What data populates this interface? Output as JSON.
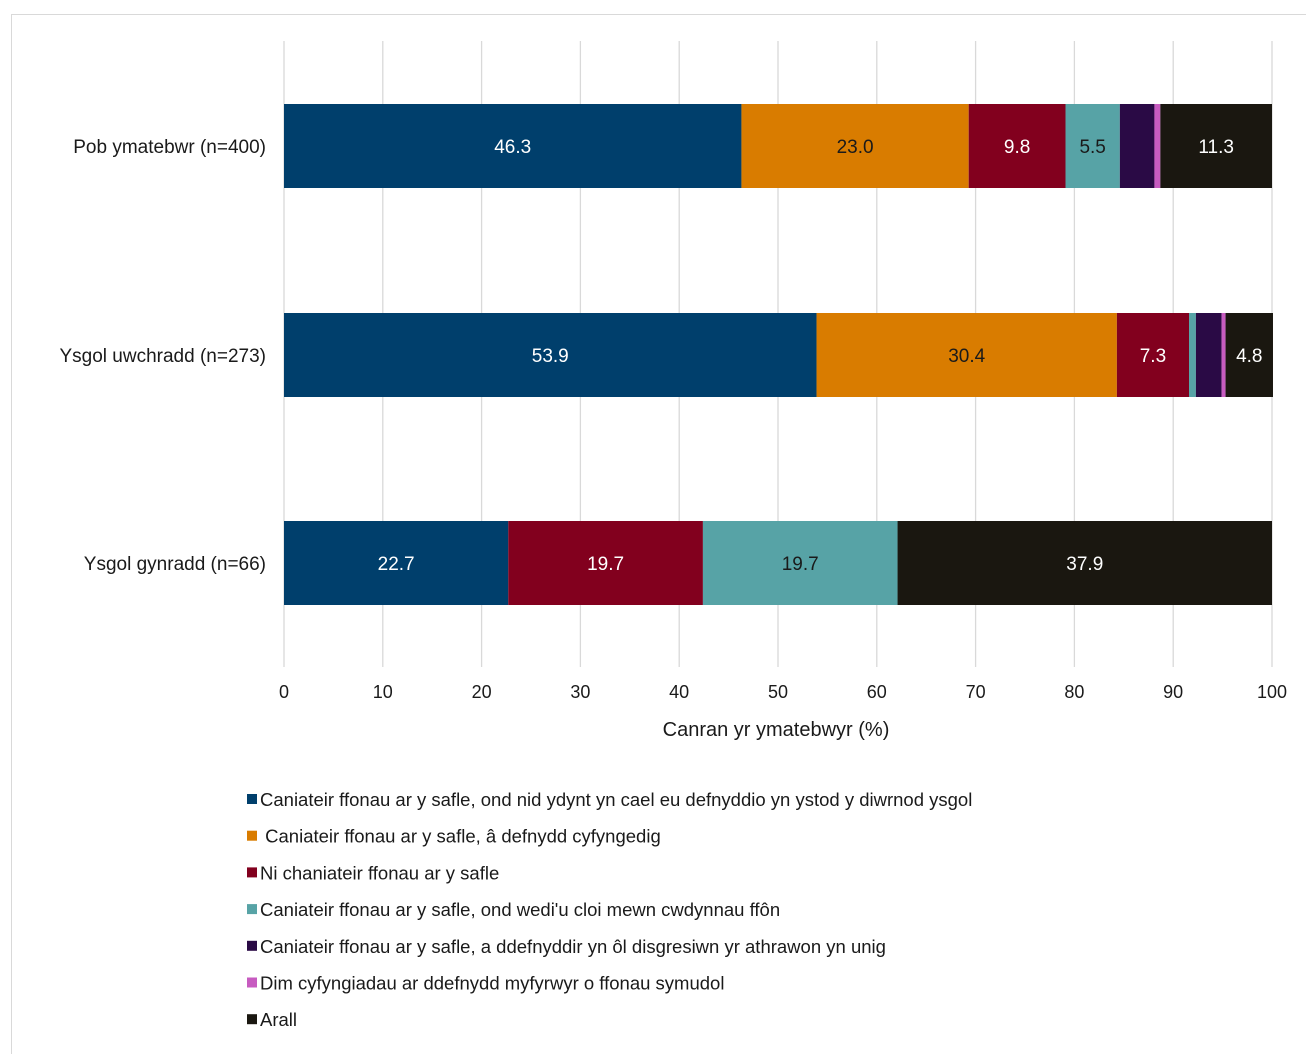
{
  "chart_data": {
    "type": "bar",
    "orientation": "horizontal",
    "stacked": true,
    "categories": [
      "Pob ymatebwr (n=400)",
      "Ysgol uwchradd (n=273)",
      "Ysgol gynradd (n=66)"
    ],
    "series": [
      {
        "name": "Caniateir ffonau ar y safle, ond nid ydynt yn cael eu defnyddio yn ystod y diwrnod ysgol",
        "color": "#003f6c",
        "values": [
          46.3,
          53.9,
          22.7
        ],
        "labels": [
          "46.3",
          "53.9",
          "22.7"
        ],
        "label_color": "#ffffff"
      },
      {
        "name": " Caniateir ffonau ar y safle, â defnydd cyfyngedig",
        "color": "#d97c00",
        "values": [
          23.0,
          30.4,
          0
        ],
        "labels": [
          "23.0",
          "30.4",
          ""
        ],
        "label_color": "#1a1a1a"
      },
      {
        "name": "Ni chaniateir ffonau ar y safle",
        "color": "#82001e",
        "values": [
          9.8,
          7.3,
          19.7
        ],
        "labels": [
          "9.8",
          "7.3",
          "19.7"
        ],
        "label_color": "#ffffff"
      },
      {
        "name": "Caniateir ffonau ar y safle, ond wedi'u cloi mewn cwdynnau ffôn",
        "color": "#57a3a6",
        "values": [
          5.5,
          0.7,
          19.7
        ],
        "labels": [
          "5.5",
          "",
          "19.7"
        ],
        "label_color": "#1a1a1a"
      },
      {
        "name": "Caniateir ffonau ar y safle, a ddefnyddir yn ôl disgresiwn yr athrawon yn unig",
        "color": "#2a0a45",
        "values": [
          3.5,
          2.6,
          0
        ],
        "labels": [
          "",
          "",
          ""
        ],
        "label_color": "#ffffff"
      },
      {
        "name": "Dim cyfyngiadau ar ddefnydd myfyrwyr o ffonau symudol",
        "color": "#c75bc0",
        "values": [
          0.6,
          0.4,
          0
        ],
        "labels": [
          "",
          "",
          ""
        ],
        "label_color": "#ffffff"
      },
      {
        "name": "Arall",
        "color": "#1a1710",
        "values": [
          11.3,
          4.8,
          37.9
        ],
        "labels": [
          "11.3",
          "4.8",
          "37.9"
        ],
        "label_color": "#ffffff"
      }
    ],
    "xlim": [
      0,
      100
    ],
    "xticks": [
      "0",
      "10",
      "20",
      "30",
      "40",
      "50",
      "60",
      "70",
      "80",
      "90",
      "100"
    ],
    "xlabel": "Canran yr ymatebwyr (%)",
    "grid": true,
    "legend_position": "bottom"
  }
}
